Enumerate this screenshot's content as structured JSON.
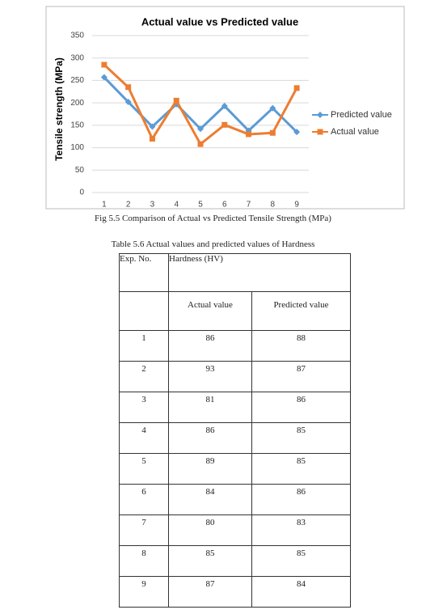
{
  "chart_data": {
    "type": "line",
    "title": "Actual value vs Predicted value",
    "y_label": "Tensile strength (MPa)",
    "categories": [
      1,
      2,
      3,
      4,
      5,
      6,
      7,
      8,
      9
    ],
    "series": [
      {
        "name": "Predicted value",
        "color": "#5b9bd5",
        "marker": "diamond",
        "values": [
          257,
          202,
          147,
          197,
          142,
          193,
          138,
          188,
          135
        ]
      },
      {
        "name": "Actual value",
        "color": "#ed7d31",
        "marker": "square",
        "values": [
          285,
          235,
          120,
          205,
          108,
          151,
          130,
          133,
          233
        ]
      }
    ],
    "ylim": [
      0,
      350
    ],
    "yticks": [
      0,
      50,
      100,
      150,
      200,
      250,
      300,
      350
    ],
    "grid": true,
    "legend": "right"
  },
  "figure_caption": "Fig 5.5 Comparison of Actual vs Predicted Tensile Strength (MPa)",
  "table": {
    "title": "Table 5.6 Actual values and predicted values of Hardness",
    "header": [
      "Exp. No.",
      "Hardness (HV)"
    ],
    "subheader": [
      "Actual value",
      "Predicted value"
    ],
    "rows": [
      [
        1,
        86,
        88
      ],
      [
        2,
        93,
        87
      ],
      [
        3,
        81,
        86
      ],
      [
        4,
        86,
        85
      ],
      [
        5,
        89,
        85
      ],
      [
        6,
        84,
        86
      ],
      [
        7,
        80,
        83
      ],
      [
        8,
        85,
        85
      ],
      [
        9,
        87,
        84
      ]
    ]
  }
}
